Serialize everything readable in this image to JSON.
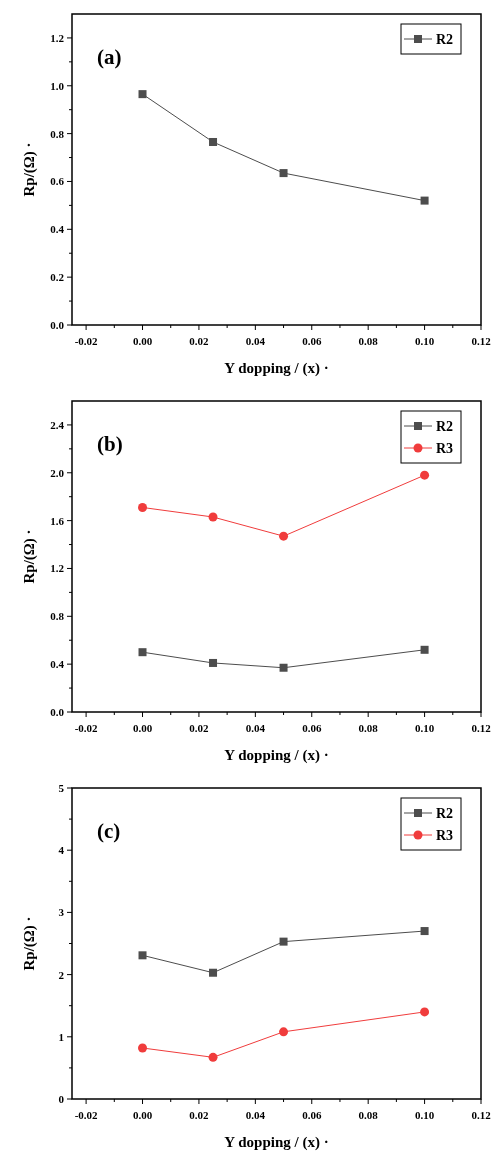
{
  "chart_data": [
    {
      "type": "line",
      "title": "(a)",
      "xlabel": "Y dopping / (x) ·",
      "ylabel": "Rp/(Ω) ·",
      "x": [
        0,
        0.025,
        0.05,
        0.1
      ],
      "series": [
        {
          "name": "R2",
          "color": "#4d4d4d",
          "values": [
            0.965,
            0.765,
            0.635,
            0.52
          ],
          "marker": "square"
        }
      ],
      "xlim": [
        -0.025,
        0.12
      ],
      "xticks": [
        {
          "value": -0.02,
          "label": "-0.02"
        },
        {
          "value": -0.01,
          "label": null
        },
        {
          "value": 0,
          "label": "0.00"
        },
        {
          "value": 0.01,
          "label": null
        },
        {
          "value": 0.02,
          "label": "0.02"
        },
        {
          "value": 0.03,
          "label": null
        },
        {
          "value": 0.04,
          "label": "0.04"
        },
        {
          "value": 0.05,
          "label": null
        },
        {
          "value": 0.06,
          "label": "0.06"
        },
        {
          "value": 0.07,
          "label": null
        },
        {
          "value": 0.08,
          "label": "0.08"
        },
        {
          "value": 0.09,
          "label": null
        },
        {
          "value": 0.1,
          "label": "0.10"
        },
        {
          "value": 0.11,
          "label": null
        },
        {
          "value": 0.12,
          "label": "0.12"
        }
      ],
      "ylim": [
        0,
        1.3
      ],
      "yticks": [
        {
          "value": 0,
          "label": "0.0"
        },
        {
          "value": 0.1,
          "label": null
        },
        {
          "value": 0.2,
          "label": "0.2"
        },
        {
          "value": 0.3,
          "label": null
        },
        {
          "value": 0.4,
          "label": "0.4"
        },
        {
          "value": 0.5,
          "label": null
        },
        {
          "value": 0.6,
          "label": "0.6"
        },
        {
          "value": 0.7,
          "label": null
        },
        {
          "value": 0.8,
          "label": "0.8"
        },
        {
          "value": 0.9,
          "label": null
        },
        {
          "value": 1,
          "label": "1.0"
        },
        {
          "value": 1.1,
          "label": null
        },
        {
          "value": 1.2,
          "label": "1.2"
        }
      ],
      "grid": false,
      "legend": "top right",
      "line_style": "solid"
    },
    {
      "type": "line",
      "title": "(b)",
      "xlabel": "Y dopping / (x) ·",
      "ylabel": "Rp/(Ω) ·",
      "x": [
        0,
        0.025,
        0.05,
        0.1
      ],
      "series": [
        {
          "name": "R2",
          "color": "#4d4d4d",
          "values": [
            0.5,
            0.41,
            0.37,
            0.52
          ],
          "marker": "square"
        },
        {
          "name": "R3",
          "color": "#f03c3c",
          "values": [
            1.71,
            1.63,
            1.47,
            1.98
          ],
          "marker": "circle"
        }
      ],
      "xlim": [
        -0.025,
        0.12
      ],
      "xticks": [
        {
          "value": -0.02,
          "label": "-0.02"
        },
        {
          "value": -0.01,
          "label": null
        },
        {
          "value": 0,
          "label": "0.00"
        },
        {
          "value": 0.01,
          "label": null
        },
        {
          "value": 0.02,
          "label": "0.02"
        },
        {
          "value": 0.03,
          "label": null
        },
        {
          "value": 0.04,
          "label": "0.04"
        },
        {
          "value": 0.05,
          "label": null
        },
        {
          "value": 0.06,
          "label": "0.06"
        },
        {
          "value": 0.07,
          "label": null
        },
        {
          "value": 0.08,
          "label": "0.08"
        },
        {
          "value": 0.09,
          "label": null
        },
        {
          "value": 0.1,
          "label": "0.10"
        },
        {
          "value": 0.11,
          "label": null
        },
        {
          "value": 0.12,
          "label": "0.12"
        }
      ],
      "ylim": [
        0,
        2.6
      ],
      "yticks": [
        {
          "value": 0,
          "label": "0.0"
        },
        {
          "value": 0.2,
          "label": null
        },
        {
          "value": 0.4,
          "label": "0.4"
        },
        {
          "value": 0.6,
          "label": null
        },
        {
          "value": 0.8,
          "label": "0.8"
        },
        {
          "value": 1.0,
          "label": null
        },
        {
          "value": 1.2,
          "label": "1.2"
        },
        {
          "value": 1.4,
          "label": null
        },
        {
          "value": 1.6,
          "label": "1.6"
        },
        {
          "value": 1.8,
          "label": null
        },
        {
          "value": 2.0,
          "label": "2.0"
        },
        {
          "value": 2.2,
          "label": null
        },
        {
          "value": 2.4,
          "label": "2.4"
        }
      ],
      "grid": false,
      "legend": "top right",
      "line_style": "solid"
    },
    {
      "type": "line",
      "title": "(c)",
      "xlabel": "Y dopping / (x) ·",
      "ylabel": "Rp/(Ω) ·",
      "x": [
        0,
        0.025,
        0.05,
        0.1
      ],
      "series": [
        {
          "name": "R2",
          "color": "#4d4d4d",
          "values": [
            2.31,
            2.03,
            2.53,
            2.7
          ],
          "marker": "square"
        },
        {
          "name": "R3",
          "color": "#f03c3c",
          "values": [
            0.82,
            0.67,
            1.08,
            1.4
          ],
          "marker": "circle"
        }
      ],
      "xlim": [
        -0.025,
        0.12
      ],
      "xticks": [
        {
          "value": -0.02,
          "label": "-0.02"
        },
        {
          "value": -0.01,
          "label": null
        },
        {
          "value": 0,
          "label": "0.00"
        },
        {
          "value": 0.01,
          "label": null
        },
        {
          "value": 0.02,
          "label": "0.02"
        },
        {
          "value": 0.03,
          "label": null
        },
        {
          "value": 0.04,
          "label": "0.04"
        },
        {
          "value": 0.05,
          "label": null
        },
        {
          "value": 0.06,
          "label": "0.06"
        },
        {
          "value": 0.07,
          "label": null
        },
        {
          "value": 0.08,
          "label": "0.08"
        },
        {
          "value": 0.09,
          "label": null
        },
        {
          "value": 0.1,
          "label": "0.10"
        },
        {
          "value": 0.11,
          "label": null
        },
        {
          "value": 0.12,
          "label": "0.12"
        }
      ],
      "ylim": [
        0,
        5
      ],
      "yticks": [
        0,
        {
          "value": 0.5,
          "label": null
        },
        1,
        {
          "value": 1.5,
          "label": null
        },
        2,
        {
          "value": 2.5,
          "label": null
        },
        3,
        {
          "value": 3.5,
          "label": null
        },
        4,
        {
          "value": 4.5,
          "label": null
        },
        5
      ],
      "grid": false,
      "legend": "top right",
      "line_style": "solid"
    }
  ]
}
